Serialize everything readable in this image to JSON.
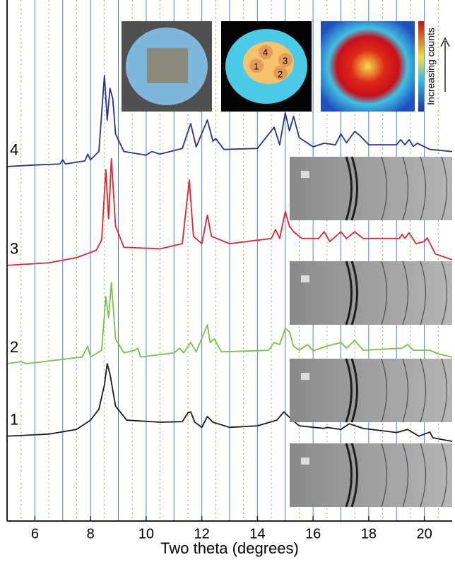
{
  "chart_data": {
    "type": "line",
    "xlabel": "Two theta (degrees)",
    "xlim": [
      5,
      21
    ],
    "ylim": [
      0,
      100
    ],
    "xticks": [
      6,
      8,
      10,
      12,
      14,
      16,
      18,
      20
    ],
    "x_gridlines": [
      6,
      7,
      8,
      9,
      10,
      11,
      12,
      13,
      14,
      15,
      16,
      17,
      18,
      19,
      20
    ],
    "x_minor_gridlines": [
      5.5,
      6.5,
      7.5,
      8.5,
      9.5,
      10.5,
      11.5,
      12.5,
      13.5,
      14.5,
      15.5,
      16.5,
      17.5,
      18.5,
      19.5,
      20.5
    ],
    "colorbar_label": "Increasing counts",
    "inset_labels": [
      "1",
      "2",
      "3",
      "4"
    ],
    "series": [
      {
        "name": "4",
        "color": "#2b2f8f",
        "x": [
          5.0,
          6.0,
          6.9,
          7.0,
          7.1,
          7.8,
          7.9,
          8.0,
          8.3,
          8.5,
          8.6,
          8.7,
          8.8,
          8.9,
          9.2,
          10.0,
          10.2,
          10.5,
          11.3,
          11.6,
          11.8,
          12.2,
          12.4,
          12.5,
          12.8,
          14.0,
          14.6,
          14.8,
          15.0,
          15.15,
          15.3,
          15.5,
          16.0,
          16.4,
          16.8,
          17.0,
          17.2,
          17.5,
          17.7,
          18.0,
          19.0,
          19.15,
          19.3,
          19.45,
          19.6,
          19.75,
          20.2,
          21.0
        ],
        "values": [
          68.5,
          68.8,
          69.0,
          69.8,
          69.0,
          69.6,
          70.9,
          69.8,
          71.4,
          86.1,
          77.5,
          83.6,
          81.6,
          74.8,
          71.4,
          70.7,
          71.4,
          70.9,
          72.0,
          76.8,
          72.3,
          77.5,
          73.4,
          73.9,
          71.8,
          72.0,
          76.1,
          72.7,
          78.9,
          75.4,
          78.2,
          74.1,
          72.3,
          73.0,
          72.7,
          74.8,
          73.1,
          75.3,
          74.4,
          72.7,
          72.7,
          73.7,
          72.7,
          73.7,
          72.4,
          73.0,
          71.8,
          71.4
        ]
      },
      {
        "name": "3",
        "color": "#e3232c",
        "x": [
          5.0,
          6.5,
          7.5,
          8.2,
          8.4,
          8.55,
          8.65,
          8.75,
          8.9,
          9.2,
          10.5,
          11.3,
          11.55,
          11.7,
          12.0,
          12.2,
          12.35,
          13.0,
          14.5,
          14.65,
          14.8,
          15.0,
          15.15,
          15.3,
          15.6,
          16.2,
          16.4,
          16.6,
          17.0,
          17.2,
          17.5,
          17.8,
          19.1,
          19.2,
          19.3,
          19.45,
          19.7,
          20.0,
          20.1,
          20.4,
          21.0
        ],
        "values": [
          49.4,
          49.9,
          50.9,
          52.3,
          54.3,
          67.9,
          58.4,
          70.0,
          57.0,
          52.9,
          52.6,
          53.6,
          65.9,
          55.0,
          53.6,
          59.1,
          55.0,
          53.6,
          54.6,
          56.3,
          54.6,
          59.8,
          57.0,
          55.9,
          54.6,
          54.6,
          55.9,
          54.0,
          55.9,
          54.6,
          55.9,
          54.6,
          54.6,
          55.4,
          54.6,
          55.7,
          53.6,
          54.0,
          54.7,
          51.6,
          50.5
        ]
      },
      {
        "name": "2",
        "color": "#7ac143",
        "x": [
          5.0,
          5.5,
          5.7,
          7.7,
          7.9,
          8.0,
          8.4,
          8.55,
          8.65,
          8.75,
          8.9,
          9.2,
          9.6,
          9.7,
          9.8,
          11.0,
          11.2,
          11.35,
          11.6,
          11.8,
          12.2,
          12.3,
          12.45,
          12.7,
          14.4,
          14.6,
          14.8,
          15.0,
          15.15,
          15.3,
          15.5,
          15.8,
          16.0,
          16.5,
          17.0,
          17.2,
          17.5,
          17.8,
          19.2,
          19.4,
          19.6,
          20.2,
          20.5,
          21.0
        ],
        "values": [
          30.4,
          30.8,
          30.4,
          31.7,
          33.8,
          31.7,
          33.0,
          43.4,
          39.3,
          46.1,
          35.2,
          32.5,
          33.0,
          33.4,
          31.7,
          32.5,
          33.4,
          32.5,
          34.5,
          32.7,
          37.9,
          34.5,
          35.2,
          32.7,
          33.0,
          34.5,
          34.1,
          37.2,
          36.6,
          33.8,
          33.0,
          34.1,
          32.9,
          33.8,
          34.5,
          33.4,
          34.9,
          33.0,
          33.4,
          34.1,
          33.0,
          33.0,
          32.3,
          31.7
        ]
      },
      {
        "name": "1",
        "color": "#1a1a1a",
        "x": [
          5.0,
          6.5,
          7.5,
          8.0,
          8.3,
          8.5,
          8.6,
          8.7,
          8.9,
          9.3,
          10.5,
          11.3,
          11.5,
          11.6,
          11.75,
          12.0,
          12.2,
          12.4,
          13.0,
          14.0,
          14.7,
          14.95,
          15.2,
          15.5,
          16.4,
          16.5,
          17.0,
          17.3,
          17.8,
          19.0,
          19.4,
          19.8,
          20.2,
          20.3,
          21.0
        ],
        "values": [
          16.4,
          16.8,
          17.7,
          19.5,
          21.6,
          26.3,
          30.4,
          28.4,
          22.2,
          19.5,
          19.1,
          19.2,
          20.9,
          21.1,
          19.1,
          18.1,
          20.2,
          19.1,
          18.1,
          18.4,
          19.5,
          21.1,
          19.8,
          18.4,
          17.9,
          18.1,
          17.7,
          18.8,
          17.9,
          17.1,
          17.7,
          16.4,
          17.2,
          16.1,
          15.4
        ]
      }
    ]
  }
}
